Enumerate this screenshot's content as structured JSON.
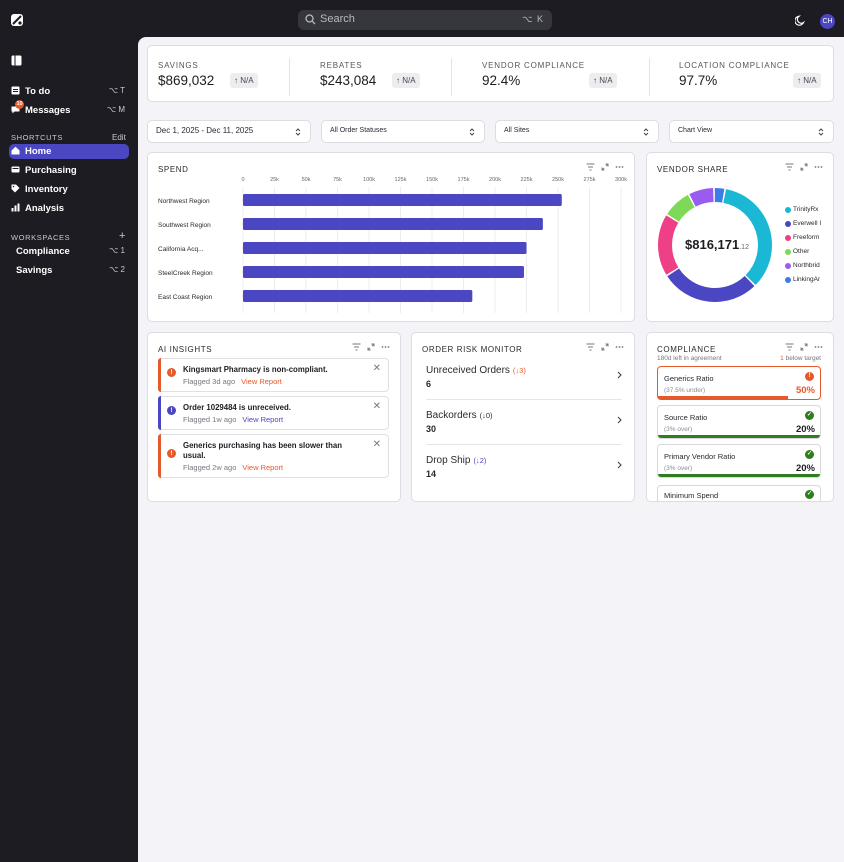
{
  "colors": {
    "accent": "#4b46c1",
    "warning": "#e55a2b",
    "success": "#2f7d1e"
  },
  "topbar": {
    "search_placeholder": "Search",
    "search_shortcut": "⌥ K",
    "avatar_initials": "CH"
  },
  "sidebar": {
    "primary": [
      {
        "label": "To do",
        "icon": "inbox-icon",
        "shortcut": "⌥ T"
      },
      {
        "label": "Messages",
        "icon": "chat-icon",
        "shortcut": "⌥ M",
        "badge": "10"
      }
    ],
    "shortcuts_heading": "SHORTCUTS",
    "shortcuts_edit": "Edit",
    "shortcuts": [
      {
        "label": "Home",
        "icon": "home-icon",
        "active": true
      },
      {
        "label": "Purchasing",
        "icon": "cart-icon"
      },
      {
        "label": "Inventory",
        "icon": "tag-icon"
      },
      {
        "label": "Analysis",
        "icon": "bar-chart-icon"
      }
    ],
    "workspaces_heading": "WORKSPACES",
    "workspaces_add": "+",
    "workspaces": [
      {
        "label": "Compliance",
        "shortcut": "⌥ 1"
      },
      {
        "label": "Savings",
        "shortcut": "⌥ 2"
      }
    ]
  },
  "kpis": [
    {
      "label": "SAVINGS",
      "value": "$869,032",
      "change": "N/A"
    },
    {
      "label": "REBATES",
      "value": "$243,084",
      "change": "N/A"
    },
    {
      "label": "VENDOR COMPLIANCE",
      "value": "92.4%",
      "change": "N/A"
    },
    {
      "label": "LOCATION COMPLIANCE",
      "value": "97.7%",
      "change": "N/A"
    }
  ],
  "filters": {
    "date_range": "Dec 1, 2025 - Dec 11, 2025",
    "order_status": "All Order Statuses",
    "sites": "All Sites",
    "view": "Chart View"
  },
  "spend": {
    "title": "SPEND",
    "tools": [
      "filter-icon",
      "expand-icon",
      "more-icon"
    ]
  },
  "vendor_share": {
    "title": "VENDOR SHARE",
    "total": "$816,171",
    "total_cents": ".12",
    "legend": [
      {
        "label": "TrinityRx",
        "color": "#1ab8d4"
      },
      {
        "label": "Everwell I",
        "color": "#4b46c1"
      },
      {
        "label": "Freeform",
        "color": "#ef3f86"
      },
      {
        "label": "Other",
        "color": "#7ed957"
      },
      {
        "label": "Northbrid",
        "color": "#9a5cf0"
      },
      {
        "label": "LinkingAr",
        "color": "#3b7de8"
      }
    ]
  },
  "ai_insights": {
    "title": "AI INSIGHTS",
    "action_label": "View Report",
    "items": [
      {
        "title": "Kingsmart Pharmacy is non-compliant.",
        "meta": "Flagged 3d ago",
        "color": "#e55a2b",
        "icon": "alert-icon"
      },
      {
        "title": "Order 1029484 is unreceived.",
        "meta": "Flagged 1w ago",
        "color": "#4b46c1",
        "icon": "info-icon"
      },
      {
        "title": "Generics purchasing has been slower than usual.",
        "meta": "Flagged 2w ago",
        "color": "#e55a2b",
        "icon": "alert-icon"
      }
    ]
  },
  "order_risk": {
    "title": "ORDER RISK MONITOR",
    "items": [
      {
        "label": "Unreceived Orders",
        "delta": "(↓3)",
        "delta_color": "#e55a2b",
        "value": "6"
      },
      {
        "label": "Backorders",
        "delta": "(↓0)",
        "delta_color": "#2a2a30",
        "value": "30"
      },
      {
        "label": "Drop Ship",
        "delta": "(↓2)",
        "delta_color": "#4b46c1",
        "value": "14"
      }
    ]
  },
  "compliance": {
    "title": "COMPLIANCE",
    "left_note": "180d left in agreement",
    "target_count": "1",
    "target_note": "below target",
    "items": [
      {
        "name": "Generics Ratio",
        "sub": "(37.5% under)",
        "value": "50%",
        "status": "warning",
        "progress": 0.8,
        "value_color": "#e55a2b"
      },
      {
        "name": "Source Ratio",
        "sub": "(3% over)",
        "value": "20%",
        "status": "ok",
        "progress": 1.0,
        "value_color": "#1d1d22"
      },
      {
        "name": "Primary Vendor Ratio",
        "sub": "(3% over)",
        "value": "20%",
        "status": "ok",
        "progress": 1.0,
        "value_color": "#1d1d22"
      },
      {
        "name": "Minimum Spend",
        "sub": "",
        "value": "",
        "status": "ok",
        "progress": 1.0,
        "value_color": "#1d1d22"
      }
    ]
  },
  "chart_data": [
    {
      "type": "bar",
      "orientation": "horizontal",
      "title": "SPEND",
      "categories": [
        "Northwest Region",
        "Southwest Region",
        "California Acq...",
        "SteelCreek Region",
        "East Coast Region"
      ],
      "values": [
        253000,
        238000,
        225000,
        223000,
        182000
      ],
      "xlim": [
        0,
        300000
      ],
      "xticks": [
        "0",
        "25k",
        "50k",
        "75k",
        "100k",
        "125k",
        "150k",
        "175k",
        "200k",
        "225k",
        "250k",
        "275k",
        "300k"
      ],
      "color": "#4b46c1",
      "grid": true
    },
    {
      "type": "pie",
      "variant": "donut",
      "title": "VENDOR SHARE",
      "categories": [
        "TrinityRx",
        "Everwell I",
        "Freeform",
        "Other",
        "Northbrid",
        "LinkingAr"
      ],
      "values": [
        33,
        27,
        17,
        8,
        7,
        3
      ],
      "colors": [
        "#1ab8d4",
        "#4b46c1",
        "#ef3f86",
        "#7ed957",
        "#9a5cf0",
        "#3b7de8"
      ]
    }
  ]
}
